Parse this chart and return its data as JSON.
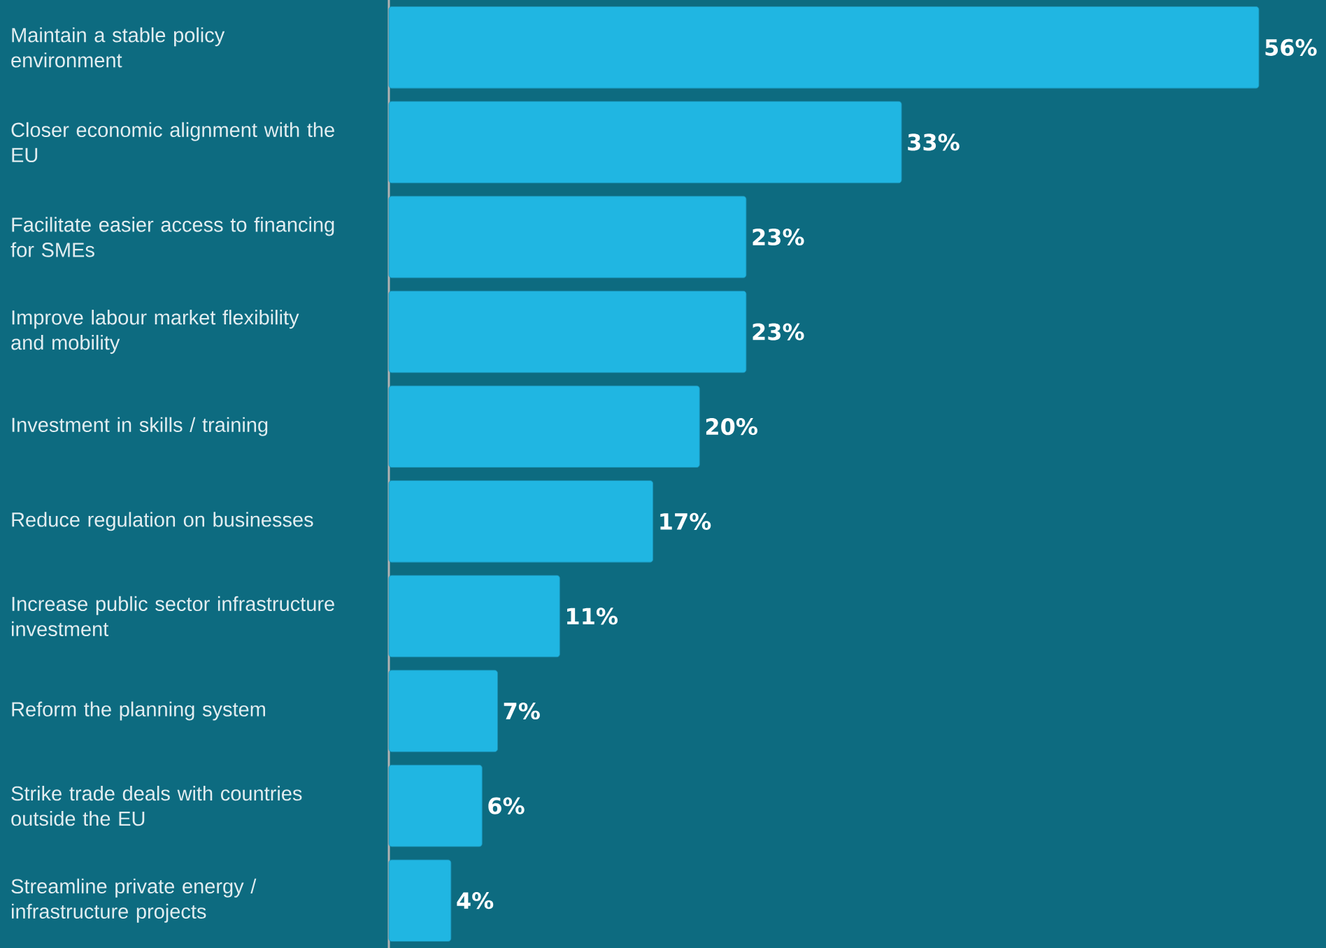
{
  "chart_data": {
    "type": "bar",
    "orientation": "horizontal",
    "color": "#20b6e2",
    "categories": [
      "Maintain a stable policy environment",
      "Closer economic alignment with the EU",
      "Facilitate easier access to financing for SMEs",
      "Improve labour market flexibility and mobility",
      "Investment in skills / training",
      "Reduce regulation on businesses",
      "Increase public sector infrastructure investment",
      "Reform the planning system",
      "Strike trade deals with countries outside the EU",
      "Streamline private energy / infrastructure projects"
    ],
    "values": [
      56,
      33,
      23,
      23,
      20,
      17,
      11,
      7,
      6,
      4
    ],
    "value_labels": [
      "56%",
      "33%",
      "23%",
      "23%",
      "20%",
      "17%",
      "11%",
      "7%",
      "6%",
      "4%"
    ]
  }
}
